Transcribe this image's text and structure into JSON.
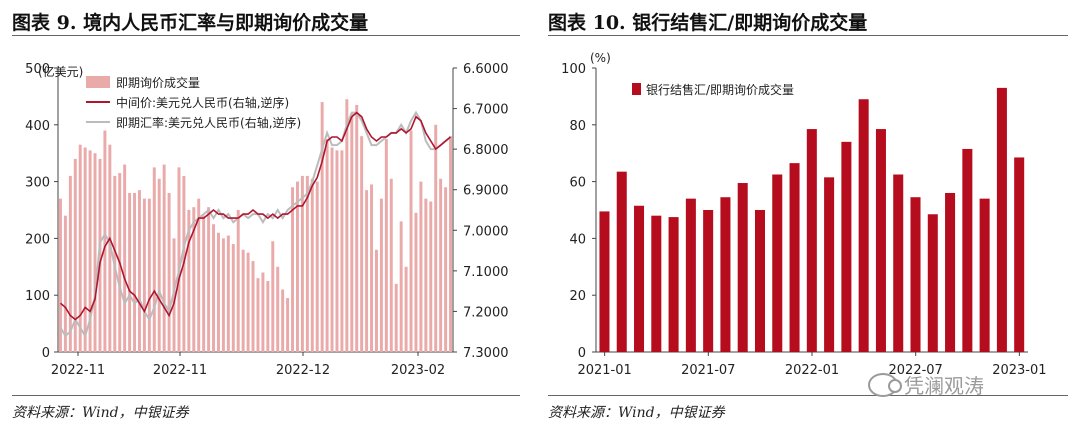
{
  "left": {
    "title": "图表 9. 境内人民币汇率与即期询价成交量",
    "source": "资料来源：Wind，中银证券"
  },
  "right": {
    "title": "图表 10. 银行结售汇/即期询价成交量",
    "source": "资料来源：Wind，中银证券"
  },
  "watermark": {
    "text": "凭澜观涛",
    "icon": "wechat-icon"
  },
  "colors": {
    "bar_left": "#eaaaaa",
    "line_mid": "#b01530",
    "line_spot": "#bcbcbc",
    "bar_right": "#b50d1e"
  },
  "chart_data": [
    {
      "type": "bar+line",
      "unit_left": "(亿美元)",
      "ylim_left": [
        0,
        500
      ],
      "yticks_left": [
        "0",
        "100",
        "200",
        "300",
        "400",
        "500"
      ],
      "ylim_right_reversed": [
        6.6,
        7.3
      ],
      "yticks_right": [
        "6.6000",
        "6.7000",
        "6.8000",
        "6.9000",
        "7.0000",
        "7.1000",
        "7.2000",
        "7.3000"
      ],
      "x_tick_labels": [
        "2022-11",
        "2022-11",
        "2022-12",
        "2023-02"
      ],
      "legend": [
        "即期询价成交量",
        "中间价:美元兑人民币(右轴,逆序)",
        "即期汇率:美元兑人民币(右轴,逆序)"
      ],
      "bars": [
        270,
        240,
        310,
        340,
        365,
        360,
        355,
        350,
        340,
        390,
        365,
        310,
        315,
        330,
        280,
        280,
        285,
        270,
        270,
        325,
        305,
        330,
        280,
        200,
        325,
        310,
        250,
        255,
        270,
        240,
        255,
        225,
        210,
        200,
        205,
        190,
        250,
        180,
        175,
        160,
        130,
        140,
        125,
        195,
        150,
        110,
        95,
        290,
        300,
        310,
        310,
        305,
        300,
        440,
        375,
        360,
        355,
        355,
        445,
        420,
        435,
        380,
        285,
        295,
        180,
        270,
        375,
        305,
        120,
        230,
        150,
        390,
        245,
        300,
        270,
        265,
        400,
        305,
        290,
        380
      ],
      "mid": [
        7.18,
        7.19,
        7.21,
        7.22,
        7.21,
        7.19,
        7.2,
        7.17,
        7.08,
        7.04,
        7.02,
        7.05,
        7.08,
        7.12,
        7.15,
        7.16,
        7.18,
        7.2,
        7.17,
        7.15,
        7.17,
        7.19,
        7.21,
        7.18,
        7.12,
        7.08,
        7.03,
        7.0,
        6.97,
        6.97,
        6.96,
        6.95,
        6.96,
        6.96,
        6.97,
        6.97,
        6.97,
        6.96,
        6.96,
        6.95,
        6.96,
        6.96,
        6.97,
        6.96,
        6.97,
        6.96,
        6.96,
        6.95,
        6.94,
        6.94,
        6.92,
        6.89,
        6.87,
        6.83,
        6.78,
        6.77,
        6.77,
        6.78,
        6.75,
        6.72,
        6.71,
        6.72,
        6.75,
        6.77,
        6.78,
        6.77,
        6.77,
        6.76,
        6.76,
        6.75,
        6.76,
        6.75,
        6.72,
        6.73,
        6.76,
        6.78,
        6.8,
        6.79,
        6.78,
        6.77
      ],
      "spot": [
        7.24,
        7.26,
        7.25,
        7.22,
        7.24,
        7.26,
        7.22,
        7.16,
        7.03,
        7.01,
        7.03,
        7.09,
        7.14,
        7.18,
        7.16,
        7.18,
        7.17,
        7.2,
        7.22,
        7.19,
        7.15,
        7.18,
        7.2,
        7.15,
        7.1,
        7.04,
        7.0,
        6.98,
        6.97,
        6.96,
        6.95,
        6.97,
        6.95,
        6.97,
        6.96,
        6.98,
        6.97,
        6.96,
        6.97,
        6.96,
        6.96,
        6.98,
        6.96,
        6.97,
        6.95,
        6.97,
        6.95,
        6.94,
        6.93,
        6.92,
        6.91,
        6.88,
        6.84,
        6.8,
        6.76,
        6.79,
        6.79,
        6.78,
        6.74,
        6.71,
        6.71,
        6.73,
        6.76,
        6.79,
        6.79,
        6.78,
        6.77,
        6.76,
        6.76,
        6.74,
        6.76,
        6.73,
        6.71,
        6.73,
        6.78,
        6.8,
        6.8,
        6.79,
        6.78,
        6.77
      ]
    },
    {
      "type": "bar",
      "unit": "(%)",
      "ylim": [
        0,
        100
      ],
      "yticks": [
        "0",
        "20",
        "40",
        "60",
        "80",
        "100"
      ],
      "x_tick_labels": [
        "2021-01",
        "2021-07",
        "2022-01",
        "2022-07",
        "2023-01"
      ],
      "legend": [
        "银行结售汇/即期询价成交量"
      ],
      "values": [
        49.5,
        63.5,
        51.5,
        48,
        47.5,
        54,
        50,
        54.5,
        59.5,
        50,
        62.5,
        66.5,
        78.5,
        61.5,
        74,
        89,
        78.5,
        62.5,
        54.5,
        48.5,
        56,
        71.5,
        54,
        93,
        68.5
      ]
    }
  ]
}
